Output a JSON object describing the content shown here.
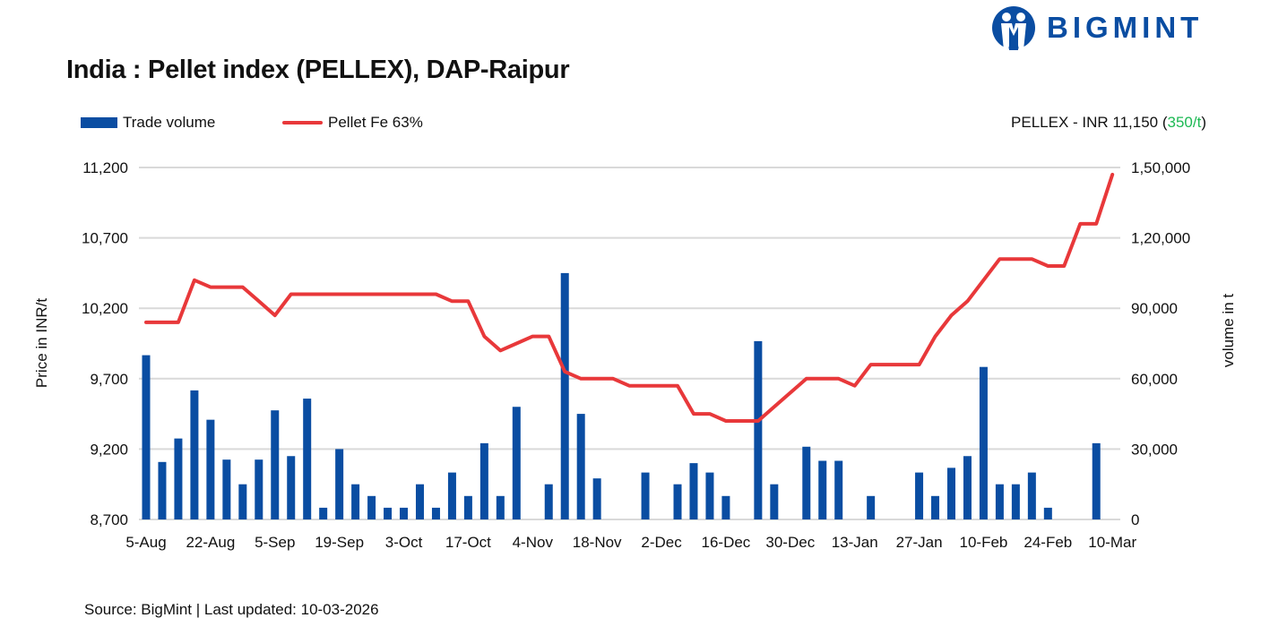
{
  "title": "India : Pellet index (PELLEX), DAP-Raipur",
  "brand": "BIGMINT",
  "summary": {
    "label": "PELLEX - INR 11,150",
    "change": "350/t",
    "change_color": "#1DB954"
  },
  "source": "Source: BigMint | Last updated: 10-03-2026",
  "colors": {
    "bar": "#0A4DA2",
    "line": "#E8383A",
    "grid": "#D9D9D9"
  },
  "chart_data": {
    "type": "bar+line",
    "legend_position": "top-left",
    "grid": true,
    "ylabel": "Price in INR/t",
    "y2label": "volume in t",
    "ylim": [
      8700,
      11200
    ],
    "y2lim": [
      0,
      150000
    ],
    "yticks": [
      "8,700",
      "9,200",
      "9,700",
      "10,200",
      "10,700",
      "11,200"
    ],
    "y2ticks": [
      "0",
      "30,000",
      "60,000",
      "90,000",
      "1,20,000",
      "1,50,000"
    ],
    "xtick_labels": [
      "5-Aug",
      "22-Aug",
      "5-Sep",
      "19-Sep",
      "3-Oct",
      "17-Oct",
      "4-Nov",
      "18-Nov",
      "2-Dec",
      "16-Dec",
      "30-Dec",
      "13-Jan",
      "27-Jan",
      "10-Feb",
      "24-Feb",
      "10-Mar"
    ],
    "series": [
      {
        "name": "Trade volume",
        "type": "bar",
        "axis": "right",
        "values": [
          70000,
          24500,
          34500,
          55000,
          42500,
          25500,
          15000,
          25500,
          46500,
          27000,
          51500,
          5000,
          30000,
          15000,
          10000,
          5000,
          5000,
          15000,
          5000,
          20000,
          10000,
          32500,
          10000,
          48000,
          null,
          15000,
          105000,
          45000,
          17500,
          null,
          null,
          20000,
          null,
          15000,
          24000,
          20000,
          10000,
          null,
          76000,
          15000,
          null,
          31000,
          25000,
          25000,
          null,
          10000,
          null,
          null,
          20000,
          10000,
          22000,
          27000,
          65000,
          15000,
          15000,
          20000,
          5000,
          null,
          null,
          32500,
          null
        ]
      },
      {
        "name": "Pellet Fe 63%",
        "type": "line",
        "axis": "left",
        "values": [
          10100,
          10100,
          10100,
          10400,
          10350,
          10350,
          10350,
          10250,
          10150,
          10300,
          10300,
          10300,
          10300,
          10300,
          10300,
          10300,
          10300,
          10300,
          10300,
          10250,
          10250,
          10000,
          9900,
          9950,
          10000,
          10000,
          9750,
          9700,
          9700,
          9700,
          9650,
          9650,
          9650,
          9650,
          9450,
          9450,
          9400,
          9400,
          9400,
          9500,
          9600,
          9700,
          9700,
          9700,
          9650,
          9800,
          9800,
          9800,
          9800,
          10000,
          10150,
          10250,
          10400,
          10550,
          10550,
          10550,
          10500,
          10500,
          10800,
          10800,
          11150
        ]
      }
    ]
  }
}
